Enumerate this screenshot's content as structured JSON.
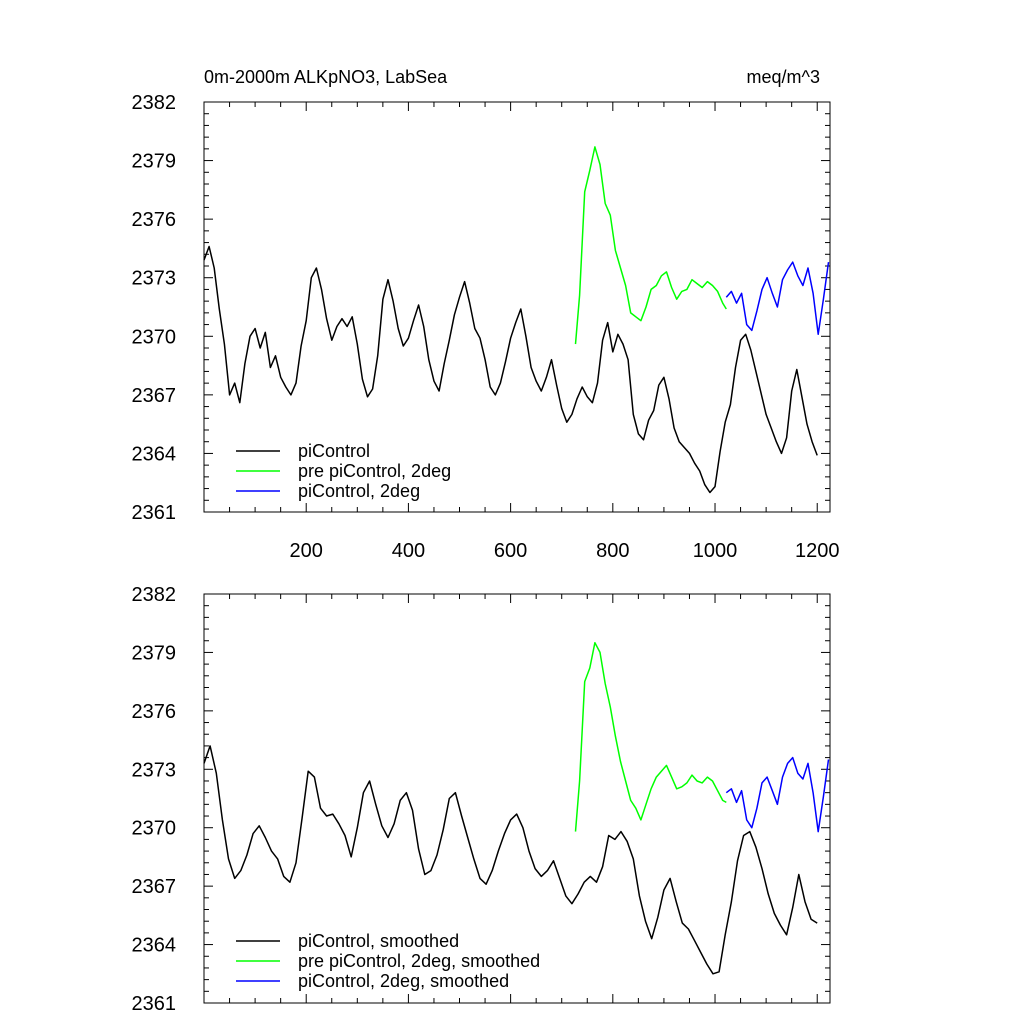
{
  "figure": {
    "title_left": "0m-2000m ALKpNO3, LabSea",
    "title_right": "meq/m^3"
  },
  "chart_data": [
    {
      "type": "line",
      "panel": "raw",
      "xlim": [
        0,
        1225
      ],
      "ylim": [
        2361,
        2382
      ],
      "x_ticks": [
        200,
        400,
        600,
        800,
        1000,
        1200
      ],
      "x_tick_labels": [
        "200",
        "400",
        "600",
        "800",
        "1000",
        "1200"
      ],
      "y_ticks": [
        2361,
        2364,
        2367,
        2370,
        2373,
        2376,
        2379,
        2382
      ],
      "y_tick_labels": [
        "2361",
        "2364",
        "2367",
        "2370",
        "2373",
        "2376",
        "2379",
        "2382"
      ],
      "legend_position": "bottom-left",
      "series": [
        {
          "name": "piControl",
          "color": "#000000",
          "x": [
            0,
            10,
            20,
            30,
            40,
            50,
            60,
            70,
            80,
            90,
            100,
            110,
            120,
            130,
            140,
            150,
            160,
            170,
            180,
            190,
            200,
            210,
            220,
            230,
            240,
            250,
            260,
            270,
            280,
            290,
            300,
            310,
            320,
            330,
            340,
            350,
            360,
            370,
            380,
            390,
            400,
            410,
            420,
            430,
            440,
            450,
            460,
            470,
            480,
            490,
            500,
            510,
            520,
            530,
            540,
            550,
            560,
            570,
            580,
            590,
            600,
            610,
            620,
            630,
            640,
            650,
            660,
            670,
            680,
            690,
            700,
            710,
            720,
            730,
            740,
            750,
            760,
            770,
            780,
            790,
            800,
            810,
            820,
            830,
            840,
            850,
            860,
            870,
            880,
            890,
            900,
            910,
            920,
            930,
            940,
            950,
            960,
            970,
            980,
            990,
            1000,
            1010,
            1020,
            1030,
            1040,
            1050,
            1060,
            1070,
            1080,
            1090,
            1100,
            1110,
            1120,
            1130,
            1140,
            1150,
            1160,
            1170,
            1180,
            1190,
            1200
          ],
          "values": [
            2373.9,
            2374.6,
            2373.5,
            2371.4,
            2369.6,
            2367.0,
            2367.6,
            2366.6,
            2368.6,
            2370.0,
            2370.4,
            2369.4,
            2370.2,
            2368.4,
            2369.0,
            2367.9,
            2367.4,
            2367.0,
            2367.6,
            2369.5,
            2370.8,
            2373.0,
            2373.5,
            2372.4,
            2370.9,
            2369.8,
            2370.5,
            2370.9,
            2370.5,
            2371.0,
            2369.6,
            2367.8,
            2366.9,
            2367.3,
            2369.0,
            2371.9,
            2372.9,
            2371.8,
            2370.4,
            2369.5,
            2369.9,
            2370.8,
            2371.6,
            2370.5,
            2368.8,
            2367.7,
            2367.2,
            2368.6,
            2369.8,
            2371.1,
            2372.0,
            2372.8,
            2371.7,
            2370.4,
            2369.9,
            2368.8,
            2367.4,
            2367.0,
            2367.6,
            2368.7,
            2369.9,
            2370.7,
            2371.4,
            2370.0,
            2368.4,
            2367.7,
            2367.2,
            2367.9,
            2368.8,
            2367.5,
            2366.3,
            2365.6,
            2366.0,
            2366.8,
            2367.4,
            2366.9,
            2366.6,
            2367.6,
            2369.8,
            2370.7,
            2369.2,
            2370.1,
            2369.6,
            2368.8,
            2366.0,
            2365.0,
            2364.7,
            2365.7,
            2366.2,
            2367.5,
            2367.9,
            2366.8,
            2365.3,
            2364.6,
            2364.3,
            2364.0,
            2363.5,
            2363.1,
            2362.4,
            2362.0,
            2362.3,
            2364.1,
            2365.6,
            2366.5,
            2368.4,
            2369.8,
            2370.1,
            2369.3,
            2368.2,
            2367.1,
            2366.0,
            2365.3,
            2364.6,
            2364.0,
            2364.8,
            2367.2,
            2368.3,
            2366.9,
            2365.5,
            2364.6,
            2363.9
          ]
        },
        {
          "name": "pre piControl, 2deg",
          "color": "#00ff00",
          "x": [
            727,
            735,
            745,
            755,
            765,
            775,
            785,
            795,
            805,
            815,
            825,
            835,
            845,
            855,
            865,
            875,
            885,
            895,
            905,
            915,
            925,
            935,
            945,
            955,
            965,
            975,
            985,
            995,
            1005,
            1015,
            1022
          ],
          "values": [
            2369.6,
            2372.1,
            2377.4,
            2378.5,
            2379.7,
            2378.8,
            2376.8,
            2376.2,
            2374.4,
            2373.5,
            2372.6,
            2371.2,
            2371.0,
            2370.8,
            2371.5,
            2372.4,
            2372.6,
            2373.1,
            2373.3,
            2372.5,
            2371.9,
            2372.3,
            2372.4,
            2372.9,
            2372.7,
            2372.5,
            2372.8,
            2372.6,
            2372.3,
            2371.7,
            2371.4
          ]
        },
        {
          "name": "piControl, 2deg",
          "color": "#0000ff",
          "x": [
            1022,
            1032,
            1042,
            1052,
            1062,
            1072,
            1082,
            1092,
            1102,
            1112,
            1122,
            1132,
            1142,
            1152,
            1162,
            1172,
            1182,
            1192,
            1202,
            1212,
            1222
          ],
          "values": [
            2372.0,
            2372.3,
            2371.7,
            2372.2,
            2370.6,
            2370.3,
            2371.3,
            2372.4,
            2373.0,
            2372.2,
            2371.5,
            2372.9,
            2373.4,
            2373.8,
            2373.1,
            2372.6,
            2373.5,
            2372.2,
            2370.1,
            2371.9,
            2373.8
          ]
        }
      ]
    },
    {
      "type": "line",
      "panel": "smoothed",
      "xlim": [
        0,
        1225
      ],
      "ylim": [
        2361,
        2382
      ],
      "x_ticks": [
        200,
        400,
        600,
        800,
        1000,
        1200
      ],
      "y_ticks": [
        2361,
        2364,
        2367,
        2370,
        2373,
        2376,
        2379,
        2382
      ],
      "y_tick_labels": [
        "2361",
        "2364",
        "2367",
        "2370",
        "2373",
        "2376",
        "2379",
        "2382"
      ],
      "legend_position": "bottom-left",
      "series": [
        {
          "name": "piControl, smoothed",
          "color": "#000000",
          "x": [
            0,
            12,
            24,
            36,
            48,
            60,
            72,
            84,
            96,
            108,
            120,
            132,
            144,
            156,
            168,
            180,
            192,
            204,
            216,
            228,
            240,
            252,
            264,
            276,
            288,
            300,
            312,
            324,
            336,
            348,
            360,
            372,
            384,
            396,
            408,
            420,
            432,
            444,
            456,
            468,
            480,
            492,
            504,
            516,
            528,
            540,
            552,
            564,
            576,
            588,
            600,
            612,
            624,
            636,
            648,
            660,
            672,
            684,
            696,
            708,
            720,
            732,
            744,
            756,
            768,
            780,
            792,
            804,
            816,
            828,
            840,
            852,
            864,
            876,
            888,
            900,
            912,
            924,
            936,
            948,
            960,
            972,
            984,
            996,
            1008,
            1020,
            1032,
            1044,
            1056,
            1068,
            1080,
            1092,
            1104,
            1116,
            1128,
            1140,
            1152,
            1164,
            1176,
            1188,
            1200
          ],
          "values": [
            2373.3,
            2374.2,
            2372.8,
            2370.4,
            2368.4,
            2367.4,
            2367.8,
            2368.6,
            2369.7,
            2370.1,
            2369.5,
            2368.8,
            2368.4,
            2367.5,
            2367.2,
            2368.2,
            2370.5,
            2372.9,
            2372.6,
            2371.0,
            2370.6,
            2370.7,
            2370.2,
            2369.6,
            2368.5,
            2370.0,
            2371.8,
            2372.4,
            2371.2,
            2370.1,
            2369.5,
            2370.2,
            2371.4,
            2371.8,
            2370.9,
            2368.9,
            2367.6,
            2367.8,
            2368.6,
            2369.9,
            2371.5,
            2371.8,
            2370.6,
            2369.5,
            2368.4,
            2367.4,
            2367.1,
            2367.8,
            2368.8,
            2369.7,
            2370.4,
            2370.7,
            2370.0,
            2368.8,
            2367.9,
            2367.5,
            2367.8,
            2368.3,
            2367.4,
            2366.5,
            2366.1,
            2366.6,
            2367.2,
            2367.5,
            2367.2,
            2368.0,
            2369.6,
            2369.4,
            2369.8,
            2369.3,
            2368.4,
            2366.5,
            2365.2,
            2364.3,
            2365.4,
            2366.8,
            2367.4,
            2366.2,
            2365.1,
            2364.8,
            2364.2,
            2363.6,
            2363.0,
            2362.5,
            2362.6,
            2364.5,
            2366.2,
            2368.3,
            2369.6,
            2369.8,
            2369.0,
            2367.9,
            2366.6,
            2365.6,
            2365.0,
            2364.5,
            2365.9,
            2367.6,
            2366.2,
            2365.3,
            2365.1
          ]
        },
        {
          "name": "pre piControl, 2deg, smoothed",
          "color": "#00ff00",
          "x": [
            727,
            735,
            745,
            755,
            765,
            775,
            785,
            795,
            805,
            815,
            825,
            835,
            845,
            855,
            865,
            875,
            885,
            895,
            905,
            915,
            925,
            935,
            945,
            955,
            965,
            975,
            985,
            995,
            1005,
            1015,
            1022
          ],
          "values": [
            2369.8,
            2372.4,
            2377.5,
            2378.2,
            2379.5,
            2379.0,
            2377.4,
            2376.2,
            2374.7,
            2373.4,
            2372.4,
            2371.4,
            2371.0,
            2370.4,
            2371.2,
            2372.0,
            2372.6,
            2372.9,
            2373.2,
            2372.6,
            2372.0,
            2372.1,
            2372.3,
            2372.7,
            2372.4,
            2372.3,
            2372.6,
            2372.4,
            2371.9,
            2371.4,
            2371.3
          ]
        },
        {
          "name": "piControl, 2deg, smoothed",
          "color": "#0000ff",
          "x": [
            1022,
            1032,
            1042,
            1052,
            1062,
            1072,
            1082,
            1092,
            1102,
            1112,
            1122,
            1132,
            1142,
            1152,
            1162,
            1172,
            1182,
            1192,
            1202,
            1212,
            1222
          ],
          "values": [
            2371.8,
            2372.0,
            2371.3,
            2371.9,
            2370.4,
            2370.0,
            2371.0,
            2372.3,
            2372.6,
            2371.9,
            2371.2,
            2372.6,
            2373.3,
            2373.6,
            2372.8,
            2372.5,
            2373.3,
            2371.8,
            2369.8,
            2371.6,
            2373.5
          ]
        }
      ]
    }
  ]
}
